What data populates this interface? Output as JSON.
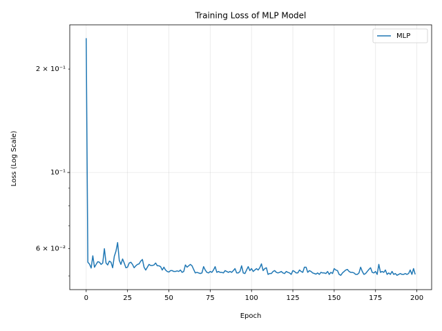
{
  "chart_data": {
    "type": "line",
    "title": "Training Loss of MLP Model",
    "x_label": "Epoch",
    "y_label": "Loss (Log Scale)",
    "log_y": true,
    "grid": true,
    "legend": "upper right",
    "xlim": [
      -9.95,
      208.95
    ],
    "xticks": [
      0,
      25,
      50,
      75,
      100,
      125,
      150,
      175,
      200
    ],
    "ylim": [
      0.0456,
      0.269
    ],
    "yticks": [
      {
        "value": 0.06,
        "label": "6 × 10⁻²"
      },
      {
        "value": 0.1,
        "label": "10⁻¹"
      },
      {
        "value": 0.2,
        "label": "2 × 10⁻¹"
      }
    ],
    "yminorticks": [
      0.05,
      0.07,
      0.08,
      0.09
    ],
    "x": [
      0,
      1,
      2,
      3,
      4,
      5,
      6,
      7,
      8,
      9,
      10,
      11,
      12,
      13,
      14,
      15,
      16,
      17,
      18,
      19,
      20,
      21,
      22,
      23,
      24,
      25,
      26,
      27,
      28,
      29,
      30,
      31,
      32,
      33,
      34,
      35,
      36,
      37,
      38,
      39,
      40,
      41,
      42,
      43,
      44,
      45,
      46,
      47,
      48,
      49,
      50,
      51,
      52,
      53,
      54,
      55,
      56,
      57,
      58,
      59,
      60,
      61,
      62,
      63,
      64,
      65,
      66,
      67,
      68,
      69,
      70,
      71,
      72,
      73,
      74,
      75,
      76,
      77,
      78,
      79,
      80,
      81,
      82,
      83,
      84,
      85,
      86,
      87,
      88,
      89,
      90,
      91,
      92,
      93,
      94,
      95,
      96,
      97,
      98,
      99,
      100,
      101,
      102,
      103,
      104,
      105,
      106,
      107,
      108,
      109,
      110,
      111,
      112,
      113,
      114,
      115,
      116,
      117,
      118,
      119,
      120,
      121,
      122,
      123,
      124,
      125,
      126,
      127,
      128,
      129,
      130,
      131,
      132,
      133,
      134,
      135,
      136,
      137,
      138,
      139,
      140,
      141,
      142,
      143,
      144,
      145,
      146,
      147,
      148,
      149,
      150,
      151,
      152,
      153,
      154,
      155,
      156,
      157,
      158,
      159,
      160,
      161,
      162,
      163,
      164,
      165,
      166,
      167,
      168,
      169,
      170,
      171,
      172,
      173,
      174,
      175,
      176,
      177,
      178,
      179,
      180,
      181,
      182,
      183,
      184,
      185,
      186,
      187,
      188,
      189,
      190,
      191,
      192,
      193,
      194,
      195,
      196,
      197,
      198,
      199
    ],
    "series": [
      {
        "name": "MLP",
        "color": "#1f77b4",
        "values": [
          0.246,
          0.0548,
          0.0541,
          0.0527,
          0.0572,
          0.053,
          0.054,
          0.055,
          0.0548,
          0.054,
          0.0545,
          0.06,
          0.0545,
          0.0538,
          0.0552,
          0.0548,
          0.0528,
          0.057,
          0.059,
          0.0625,
          0.0555,
          0.054,
          0.056,
          0.0545,
          0.0528,
          0.053,
          0.0545,
          0.0548,
          0.054,
          0.0528,
          0.0535,
          0.054,
          0.0542,
          0.0552,
          0.0558,
          0.053,
          0.052,
          0.053,
          0.054,
          0.0536,
          0.0536,
          0.0538,
          0.0545,
          0.0535,
          0.0535,
          0.0532,
          0.052,
          0.053,
          0.052,
          0.0515,
          0.0513,
          0.0518,
          0.0518,
          0.0515,
          0.0515,
          0.0517,
          0.0515,
          0.052,
          0.0512,
          0.0515,
          0.0538,
          0.053,
          0.0535,
          0.054,
          0.0535,
          0.0522,
          0.051,
          0.0512,
          0.051,
          0.0508,
          0.051,
          0.0532,
          0.052,
          0.0512,
          0.051,
          0.0515,
          0.0512,
          0.052,
          0.0532,
          0.0512,
          0.0515,
          0.0512,
          0.0512,
          0.051,
          0.0518,
          0.0515,
          0.0512,
          0.0515,
          0.0512,
          0.0518,
          0.0525,
          0.051,
          0.051,
          0.0515,
          0.0535,
          0.051,
          0.0508,
          0.052,
          0.0532,
          0.0518,
          0.0525,
          0.0515,
          0.052,
          0.0525,
          0.052,
          0.0528,
          0.0542,
          0.0518,
          0.0525,
          0.0528,
          0.0505,
          0.0508,
          0.0508,
          0.0515,
          0.0518,
          0.0512,
          0.051,
          0.0512,
          0.0515,
          0.051,
          0.0508,
          0.0515,
          0.0512,
          0.051,
          0.0505,
          0.0518,
          0.0515,
          0.051,
          0.051,
          0.052,
          0.0515,
          0.0512,
          0.053,
          0.053,
          0.0512,
          0.0518,
          0.0515,
          0.051,
          0.0508,
          0.0506,
          0.051,
          0.0505,
          0.0512,
          0.051,
          0.051,
          0.0508,
          0.0515,
          0.0505,
          0.0512,
          0.0508,
          0.0525,
          0.052,
          0.0518,
          0.0505,
          0.0502,
          0.051,
          0.0515,
          0.052,
          0.0522,
          0.0515,
          0.0512,
          0.0512,
          0.051,
          0.0505,
          0.0505,
          0.051,
          0.053,
          0.0515,
          0.0505,
          0.0508,
          0.0515,
          0.0522,
          0.0528,
          0.0512,
          0.051,
          0.0515,
          0.0505,
          0.054,
          0.0512,
          0.0515,
          0.0512,
          0.052,
          0.0505,
          0.051,
          0.0505,
          0.0515,
          0.0505,
          0.0508,
          0.0502,
          0.0505,
          0.0508,
          0.0505,
          0.0505,
          0.0508,
          0.0505,
          0.0508,
          0.052,
          0.0505,
          0.0525,
          0.0505
        ]
      }
    ]
  }
}
